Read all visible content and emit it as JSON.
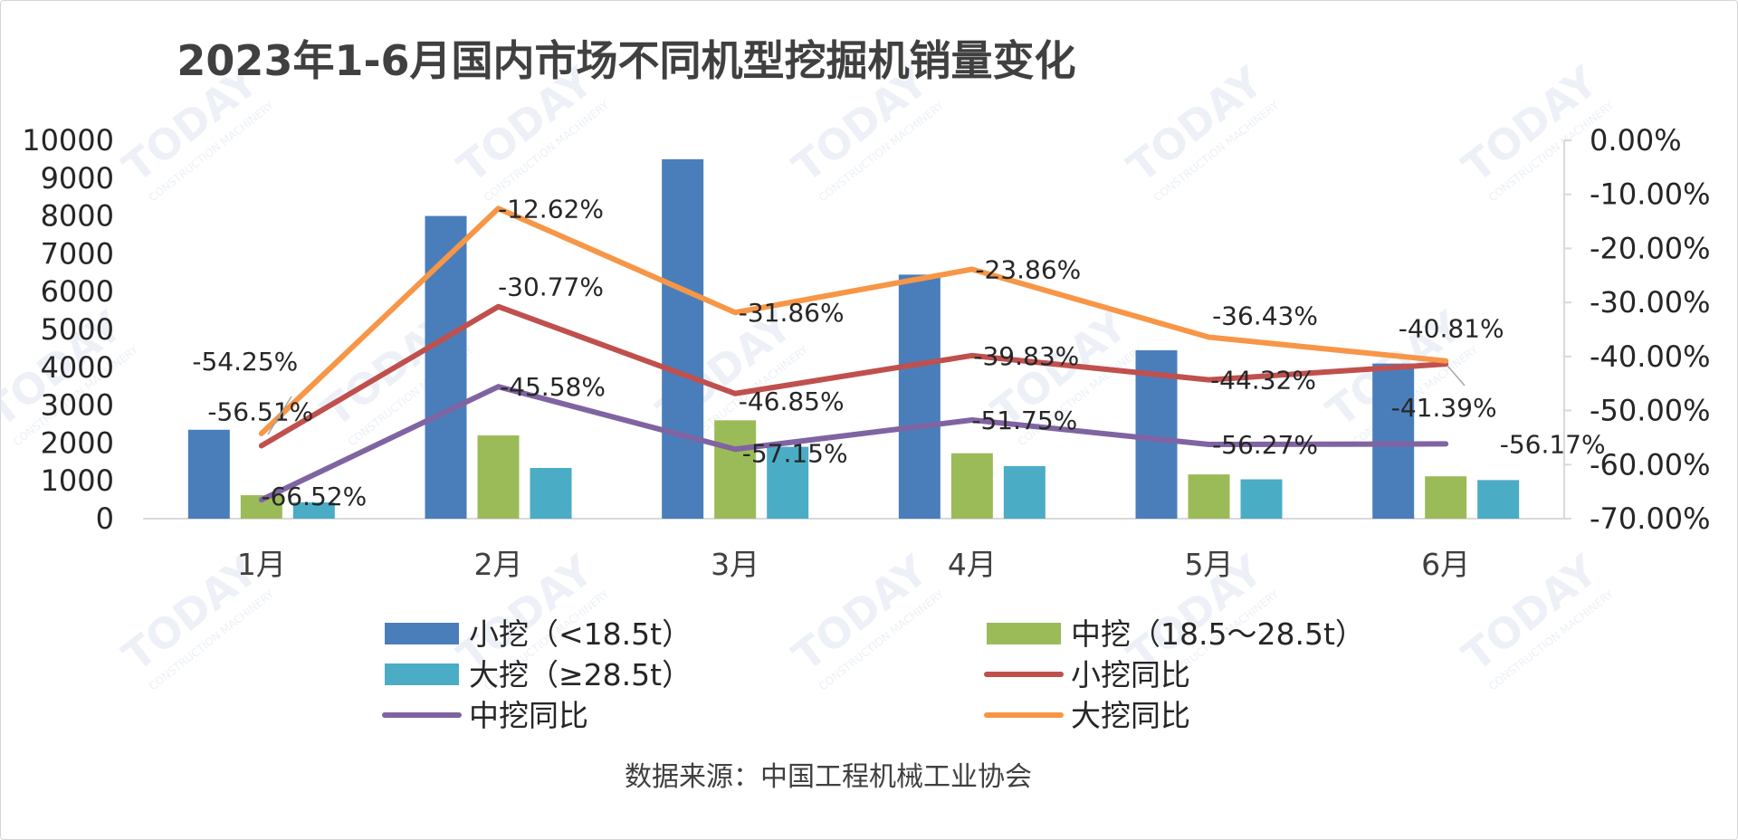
{
  "colors": {
    "small": "#4a7ebb",
    "medium": "#9bbb59",
    "large": "#4bacc6",
    "small_yoy": "#c0504d",
    "medium_yoy": "#8064a2",
    "large_yoy": "#f79646"
  },
  "chart_data": {
    "type": "bar",
    "title": "2023年1-6月国内市场不同机型挖掘机销量变化",
    "categories": [
      "1月",
      "2月",
      "3月",
      "4月",
      "5月",
      "6月"
    ],
    "ylim": [
      0,
      10000
    ],
    "y_ticks": [
      "10000",
      "9000",
      "8000",
      "7000",
      "6000",
      "5000",
      "4000",
      "3000",
      "2000",
      "1000",
      "0"
    ],
    "y2lim": [
      -70,
      0
    ],
    "y2_ticks": [
      "0.00%",
      "-10.00%",
      "-20.00%",
      "-30.00%",
      "-40.00%",
      "-50.00%",
      "-60.00%",
      "-70.00%"
    ],
    "grid": false,
    "legend_position": "bottom",
    "series": [
      {
        "name": "小挖（<18.5t）",
        "kind": "bar",
        "axis": "left",
        "color_key": "small",
        "values": [
          2350,
          8000,
          9500,
          6450,
          4450,
          4100
        ]
      },
      {
        "name": "中挖（18.5～28.5t）",
        "kind": "bar",
        "axis": "left",
        "color_key": "medium",
        "values": [
          620,
          2200,
          2600,
          1730,
          1170,
          1120
        ]
      },
      {
        "name": "大挖（≥28.5t）",
        "kind": "bar",
        "axis": "left",
        "color_key": "large",
        "values": [
          430,
          1340,
          1900,
          1390,
          1040,
          1020
        ]
      },
      {
        "name": "小挖同比",
        "kind": "line",
        "axis": "right",
        "color_key": "small_yoy",
        "values": [
          -56.51,
          -30.77,
          -46.85,
          -39.83,
          -44.32,
          -41.39
        ],
        "labels": [
          "-56.51%",
          "-30.77%",
          "-46.85%",
          "-39.83%",
          "-44.32%",
          "-41.39%"
        ]
      },
      {
        "name": "中挖同比",
        "kind": "line",
        "axis": "right",
        "color_key": "medium_yoy",
        "values": [
          -66.52,
          -45.58,
          -57.15,
          -51.75,
          -56.27,
          -56.17
        ],
        "labels": [
          "-66.52%",
          "-45.58%",
          "-57.15%",
          "-51.75%",
          "-56.27%",
          "-56.17%"
        ]
      },
      {
        "name": "大挖同比",
        "kind": "line",
        "axis": "right",
        "color_key": "large_yoy",
        "values": [
          -54.25,
          -12.62,
          -31.86,
          -23.86,
          -36.43,
          -40.81
        ],
        "labels": [
          "-54.25%",
          "-12.62%",
          "-31.86%",
          "-23.86%",
          "-36.43%",
          "-40.81%"
        ]
      }
    ],
    "source_note": "数据来源：中国工程机械工业协会"
  },
  "watermark": {
    "text": "TODAY",
    "subtext": "CONSTRUCTION MACHINERY"
  }
}
